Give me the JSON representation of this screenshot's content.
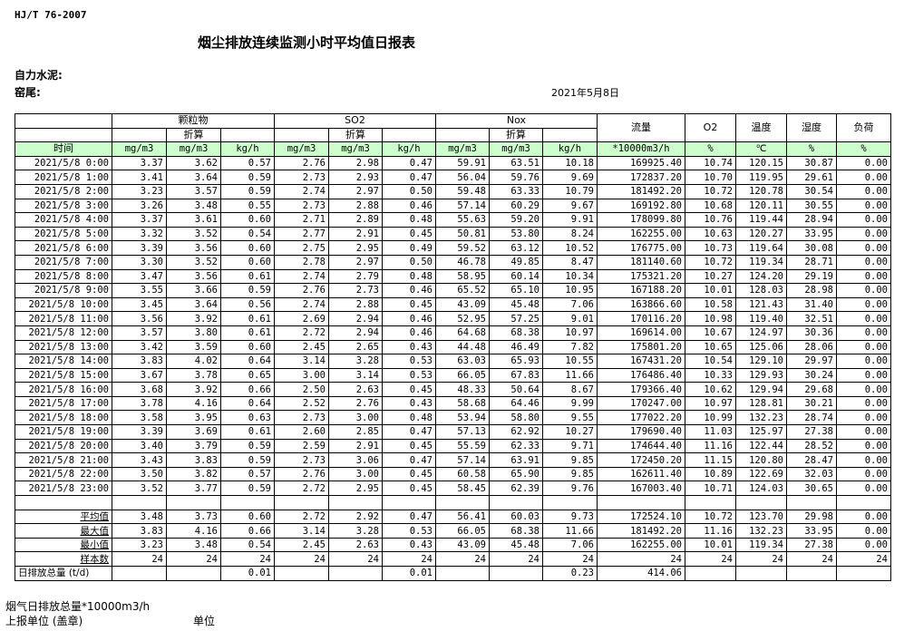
{
  "standard": "HJ/T  76-2007",
  "title": "烟尘排放连续监测小时平均值日报表",
  "company": "自力水泥:",
  "kiln": "窑尾:",
  "date": "2021年5月8日",
  "headers": {
    "pm": "颗粒物",
    "so2": "SO2",
    "nox": "Nox",
    "converted": "折算",
    "flow": "流量",
    "o2": "O2",
    "temp": "温度",
    "humidity": "湿度",
    "load": "负荷",
    "time": "时间"
  },
  "units": [
    "mg/m3",
    "mg/m3",
    "kg/h",
    "mg/m3",
    "mg/m3",
    "kg/h",
    "mg/m3",
    "mg/m3",
    "kg/h",
    "*10000m3/h",
    "%",
    "℃",
    "%",
    "%"
  ],
  "rows": [
    [
      "2021/5/8 0:00",
      "3.37",
      "3.62",
      "0.57",
      "2.76",
      "2.98",
      "0.47",
      "59.91",
      "63.51",
      "10.18",
      "169925.40",
      "10.74",
      "120.15",
      "30.87",
      "0.00"
    ],
    [
      "2021/5/8 1:00",
      "3.41",
      "3.64",
      "0.59",
      "2.73",
      "2.93",
      "0.47",
      "56.04",
      "59.76",
      "9.69",
      "172837.20",
      "10.70",
      "119.95",
      "29.61",
      "0.00"
    ],
    [
      "2021/5/8 2:00",
      "3.23",
      "3.57",
      "0.59",
      "2.74",
      "2.97",
      "0.50",
      "59.48",
      "63.33",
      "10.79",
      "181492.20",
      "10.72",
      "120.78",
      "30.54",
      "0.00"
    ],
    [
      "2021/5/8 3:00",
      "3.26",
      "3.48",
      "0.55",
      "2.73",
      "2.88",
      "0.46",
      "57.14",
      "60.29",
      "9.67",
      "169192.80",
      "10.68",
      "120.11",
      "30.55",
      "0.00"
    ],
    [
      "2021/5/8 4:00",
      "3.37",
      "3.61",
      "0.60",
      "2.71",
      "2.89",
      "0.48",
      "55.63",
      "59.20",
      "9.91",
      "178099.80",
      "10.76",
      "119.44",
      "28.94",
      "0.00"
    ],
    [
      "2021/5/8 5:00",
      "3.32",
      "3.52",
      "0.54",
      "2.77",
      "2.91",
      "0.45",
      "50.81",
      "53.80",
      "8.24",
      "162255.00",
      "10.63",
      "120.27",
      "33.95",
      "0.00"
    ],
    [
      "2021/5/8 6:00",
      "3.39",
      "3.56",
      "0.60",
      "2.75",
      "2.95",
      "0.49",
      "59.52",
      "63.12",
      "10.52",
      "176775.00",
      "10.73",
      "119.64",
      "30.08",
      "0.00"
    ],
    [
      "2021/5/8 7:00",
      "3.30",
      "3.52",
      "0.60",
      "2.78",
      "2.97",
      "0.50",
      "46.78",
      "49.85",
      "8.47",
      "181140.60",
      "10.72",
      "119.34",
      "28.71",
      "0.00"
    ],
    [
      "2021/5/8 8:00",
      "3.47",
      "3.56",
      "0.61",
      "2.74",
      "2.79",
      "0.48",
      "58.95",
      "60.14",
      "10.34",
      "175321.20",
      "10.27",
      "124.20",
      "29.19",
      "0.00"
    ],
    [
      "2021/5/8 9:00",
      "3.55",
      "3.66",
      "0.59",
      "2.76",
      "2.73",
      "0.46",
      "65.52",
      "65.10",
      "10.95",
      "167188.20",
      "10.01",
      "128.03",
      "28.98",
      "0.00"
    ],
    [
      "2021/5/8 10:00",
      "3.45",
      "3.64",
      "0.56",
      "2.74",
      "2.88",
      "0.45",
      "43.09",
      "45.48",
      "7.06",
      "163866.60",
      "10.58",
      "121.43",
      "31.40",
      "0.00"
    ],
    [
      "2021/5/8 11:00",
      "3.56",
      "3.92",
      "0.61",
      "2.69",
      "2.94",
      "0.46",
      "52.95",
      "57.25",
      "9.01",
      "170116.20",
      "10.98",
      "119.40",
      "32.51",
      "0.00"
    ],
    [
      "2021/5/8 12:00",
      "3.57",
      "3.80",
      "0.61",
      "2.72",
      "2.94",
      "0.46",
      "64.68",
      "68.38",
      "10.97",
      "169614.00",
      "10.67",
      "124.97",
      "30.36",
      "0.00"
    ],
    [
      "2021/5/8 13:00",
      "3.42",
      "3.59",
      "0.60",
      "2.45",
      "2.65",
      "0.43",
      "44.48",
      "46.49",
      "7.82",
      "175801.20",
      "10.65",
      "125.06",
      "28.06",
      "0.00"
    ],
    [
      "2021/5/8 14:00",
      "3.83",
      "4.02",
      "0.64",
      "3.14",
      "3.28",
      "0.53",
      "63.03",
      "65.93",
      "10.55",
      "167431.20",
      "10.54",
      "129.10",
      "29.97",
      "0.00"
    ],
    [
      "2021/5/8 15:00",
      "3.67",
      "3.78",
      "0.65",
      "3.00",
      "3.14",
      "0.53",
      "66.05",
      "67.83",
      "11.66",
      "176486.40",
      "10.33",
      "129.93",
      "30.24",
      "0.00"
    ],
    [
      "2021/5/8 16:00",
      "3.68",
      "3.92",
      "0.66",
      "2.50",
      "2.63",
      "0.45",
      "48.33",
      "50.64",
      "8.67",
      "179366.40",
      "10.62",
      "129.94",
      "29.68",
      "0.00"
    ],
    [
      "2021/5/8 17:00",
      "3.78",
      "4.16",
      "0.64",
      "2.52",
      "2.76",
      "0.43",
      "58.68",
      "64.46",
      "9.99",
      "170247.00",
      "10.97",
      "128.81",
      "30.21",
      "0.00"
    ],
    [
      "2021/5/8 18:00",
      "3.58",
      "3.95",
      "0.63",
      "2.73",
      "3.00",
      "0.48",
      "53.94",
      "58.80",
      "9.55",
      "177022.20",
      "10.99",
      "132.23",
      "28.74",
      "0.00"
    ],
    [
      "2021/5/8 19:00",
      "3.39",
      "3.69",
      "0.61",
      "2.60",
      "2.85",
      "0.47",
      "57.13",
      "62.92",
      "10.27",
      "179690.40",
      "11.03",
      "125.97",
      "27.38",
      "0.00"
    ],
    [
      "2021/5/8 20:00",
      "3.40",
      "3.79",
      "0.59",
      "2.59",
      "2.91",
      "0.45",
      "55.59",
      "62.33",
      "9.71",
      "174644.40",
      "11.16",
      "122.44",
      "28.52",
      "0.00"
    ],
    [
      "2021/5/8 21:00",
      "3.43",
      "3.83",
      "0.59",
      "2.73",
      "3.06",
      "0.47",
      "57.14",
      "63.91",
      "9.85",
      "172450.20",
      "11.15",
      "120.80",
      "28.47",
      "0.00"
    ],
    [
      "2021/5/8 22:00",
      "3.50",
      "3.82",
      "0.57",
      "2.76",
      "3.00",
      "0.45",
      "60.58",
      "65.90",
      "9.85",
      "162611.40",
      "10.89",
      "122.69",
      "32.03",
      "0.00"
    ],
    [
      "2021/5/8 23:00",
      "3.52",
      "3.77",
      "0.59",
      "2.72",
      "2.95",
      "0.45",
      "58.45",
      "62.39",
      "9.76",
      "167003.40",
      "10.71",
      "124.03",
      "30.65",
      "0.00"
    ]
  ],
  "summary": [
    [
      "平均值",
      "3.48",
      "3.73",
      "0.60",
      "2.72",
      "2.92",
      "0.47",
      "56.41",
      "60.03",
      "9.73",
      "172524.10",
      "10.72",
      "123.70",
      "29.98",
      "0.00"
    ],
    [
      "最大值",
      "3.83",
      "4.16",
      "0.66",
      "3.14",
      "3.28",
      "0.53",
      "66.05",
      "68.38",
      "11.66",
      "181492.20",
      "11.16",
      "132.23",
      "33.95",
      "0.00"
    ],
    [
      "最小值",
      "3.23",
      "3.48",
      "0.54",
      "2.45",
      "2.63",
      "0.43",
      "43.09",
      "45.48",
      "7.06",
      "162255.00",
      "10.01",
      "119.34",
      "27.38",
      "0.00"
    ],
    [
      "样本数",
      "24",
      "24",
      "24",
      "24",
      "24",
      "24",
      "24",
      "24",
      "24",
      "24",
      "24",
      "24",
      "24",
      "24"
    ]
  ],
  "total": [
    "日排放总量 (t/d)",
    "",
    "",
    "0.01",
    "",
    "",
    "0.01",
    "",
    "",
    "0.23",
    "414.06",
    "",
    "",
    "",
    ""
  ],
  "footer": {
    "flue_gas_total": "烟气日排放总量*10000m3/h",
    "reporting_unit": "上报单位 (盖章)",
    "unit": "单位"
  }
}
